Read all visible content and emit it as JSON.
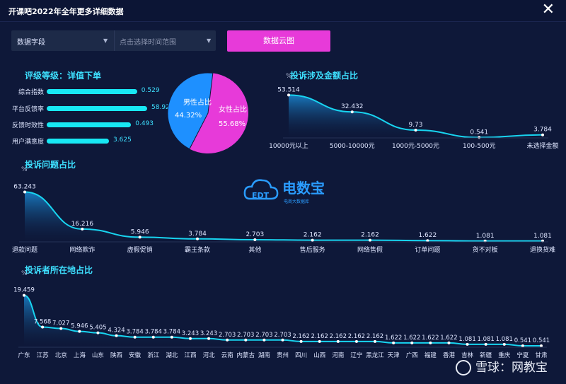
{
  "window": {
    "title": "开课吧2022年全年更多详细数据"
  },
  "filters": {
    "field": "数据字段",
    "date_placeholder": "点击选择时间范围",
    "button": "数据云图"
  },
  "rating": {
    "title": "评级等级：详值下单",
    "items": [
      {
        "label": "综合指数",
        "value": "0.529",
        "fill": 0.9
      },
      {
        "label": "平台反馈率",
        "value": "58.92",
        "fill": 1.0
      },
      {
        "label": "反馈时效性",
        "value": "0.493",
        "fill": 0.84
      },
      {
        "label": "用户满意度",
        "value": "3.625",
        "fill": 0.62
      }
    ]
  },
  "gender": {
    "male_label": "男性占比",
    "male_value": "44.32%",
    "female_label": "女性占比",
    "female_value": "55.68%",
    "male_color": "#1e90ff",
    "female_color": "#e73ad9"
  },
  "watermark": {
    "brand": "电数宝",
    "sub": "电商大数据库",
    "logo": "EDT"
  },
  "footer_watermark": "雪球：网教宝",
  "chart_data": [
    {
      "type": "area",
      "title": "投诉涉及金额占比",
      "unit": "%",
      "categories": [
        "10000元以上",
        "5000-10000元",
        "1000元-5000元",
        "100-500元",
        "未选择金额"
      ],
      "values": [
        53.514,
        32.432,
        9.73,
        0.541,
        3.784
      ],
      "value_labels": [
        "53.514",
        "32.432",
        "9.73",
        "0.541",
        "3.784"
      ],
      "ylim": [
        0,
        60
      ],
      "color": "#18d4f0"
    },
    {
      "type": "area",
      "title": "投诉问题占比",
      "unit": "%",
      "categories": [
        "退款问题",
        "网络欺诈",
        "虚假促销",
        "霸王条款",
        "其他",
        "售后服务",
        "网络售假",
        "订单问题",
        "货不对板",
        "退换货难"
      ],
      "values": [
        63.243,
        16.216,
        5.946,
        3.784,
        2.703,
        2.162,
        2.162,
        1.622,
        1.081,
        1.081
      ],
      "value_labels": [
        "63.243",
        "16.216",
        "5.946",
        "3.784",
        "2.703",
        "2.162",
        "2.162",
        "1.622",
        "1.081",
        "1.081"
      ],
      "ylim": [
        0,
        70
      ],
      "color": "#18d4f0"
    },
    {
      "type": "area",
      "title": "投诉者所在地占比",
      "unit": "%",
      "categories": [
        "广东",
        "江苏",
        "北京",
        "上海",
        "山东",
        "陕西",
        "安徽",
        "浙江",
        "湖北",
        "江西",
        "河北",
        "云南",
        "内蒙古",
        "湖南",
        "贵州",
        "四川",
        "山西",
        "河南",
        "辽宁",
        "黑龙江",
        "天津",
        "广西",
        "福建",
        "香港",
        "吉林",
        "新疆",
        "重庆",
        "宁夏",
        "甘肃"
      ],
      "values": [
        19.459,
        7.568,
        7.027,
        5.946,
        5.405,
        4.324,
        3.784,
        3.784,
        3.784,
        3.243,
        3.243,
        2.703,
        2.703,
        2.703,
        2.703,
        2.162,
        2.162,
        2.162,
        2.162,
        2.162,
        1.622,
        1.622,
        1.622,
        1.622,
        1.081,
        1.081,
        1.081,
        0.541,
        0.541
      ],
      "value_labels": [
        "19.459",
        "7.568",
        "7.027",
        "5.946",
        "5.405",
        "4.324",
        "3.784",
        "3.784",
        "3.784",
        "3.243",
        "3.243",
        "2.703",
        "2.703",
        "2.703",
        "2.703",
        "2.162",
        "2.162",
        "2.162",
        "2.162",
        "2.162",
        "1.622",
        "1.622",
        "1.622",
        "1.622",
        "1.081",
        "1.081",
        "1.081",
        "0.541",
        "0.541"
      ],
      "ylim": [
        0,
        22
      ],
      "color": "#18d4f0"
    }
  ]
}
